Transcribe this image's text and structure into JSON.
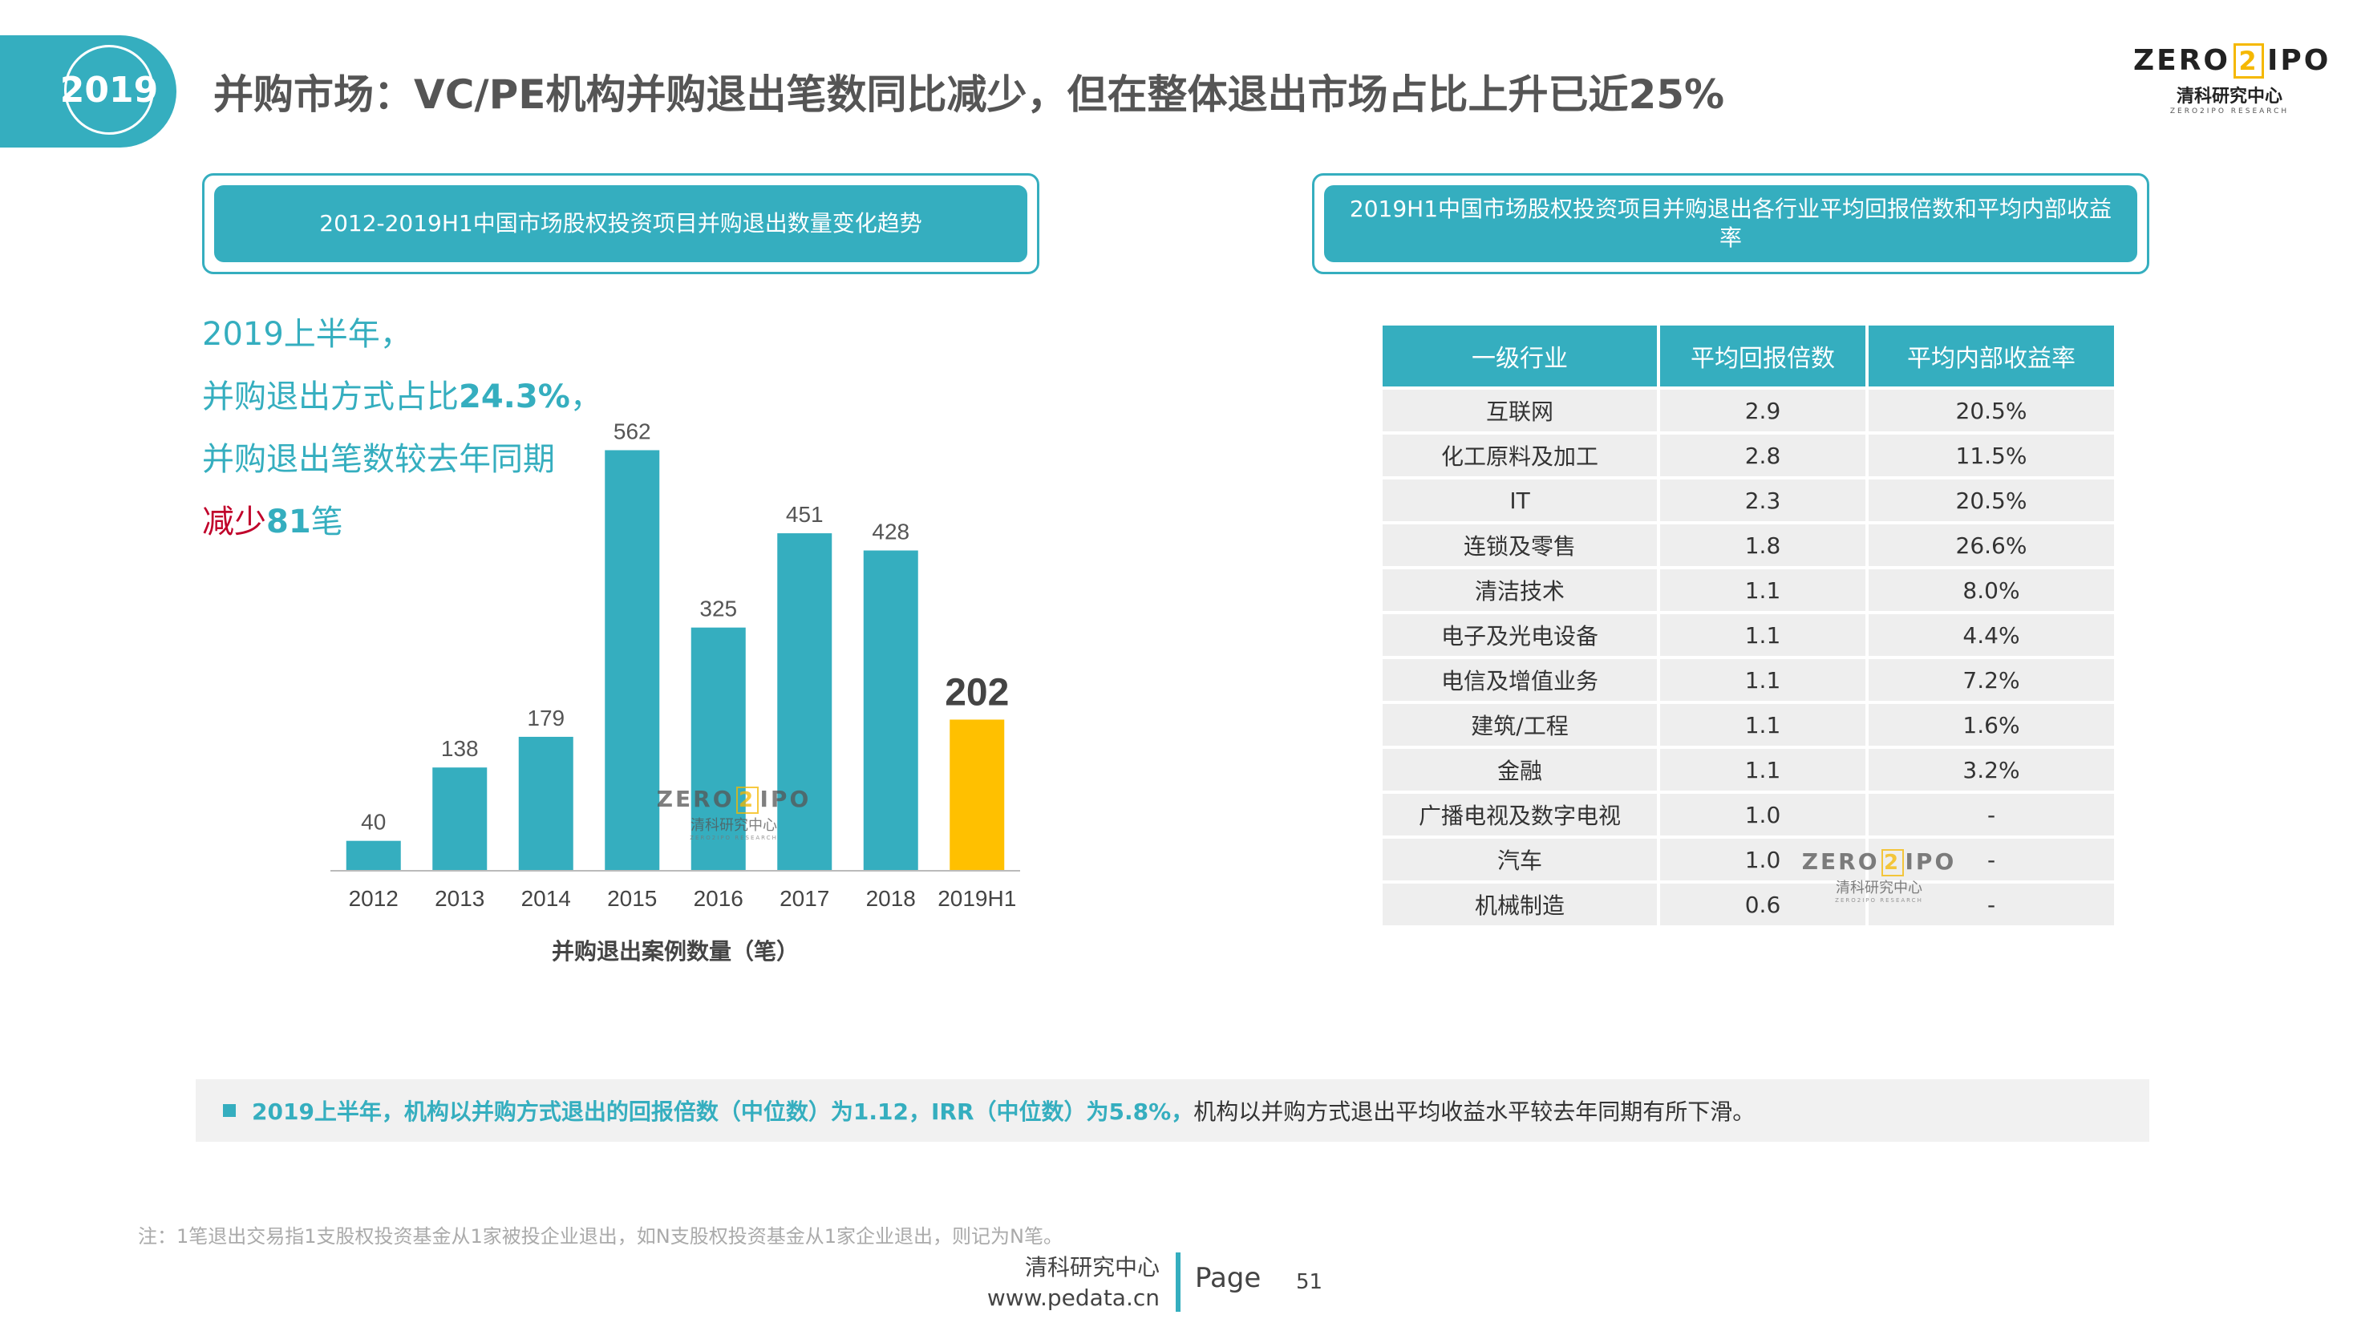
{
  "header": {
    "year_badge": "2019",
    "title": "并购市场：VC/PE机构并购退出笔数同比减少，但在整体退出市场占比上升已近25%"
  },
  "logo": {
    "part1": "ZERO",
    "part2": "2",
    "part3": "IPO",
    "cn": "清科研究中心",
    "en": "ZERO2IPO RESEARCH"
  },
  "left_box_title": "2012-2019H1中国市场股权投资项目并购退出数量变化趋势",
  "right_box_title": "2019H1中国市场股权投资项目并购退出各行业平均回报倍数和平均内部收益率",
  "highlight": {
    "line1": "2019上半年，",
    "line2_prefix": "并购退出方式占比",
    "line2_value": "24.3%",
    "line2_suffix": "，",
    "line3": "并购退出笔数较去年同期",
    "line4_prefix": "减少",
    "line4_value": "81",
    "line4_suffix": "笔"
  },
  "chart_data": {
    "type": "bar",
    "categories": [
      "2012",
      "2013",
      "2014",
      "2015",
      "2016",
      "2017",
      "2018",
      "2019H1"
    ],
    "values": [
      40,
      138,
      179,
      562,
      325,
      451,
      428,
      202
    ],
    "xlabel": "并购退出案例数量（笔）",
    "colors": {
      "default": "#35aebf",
      "highlight": "#ffc000"
    },
    "highlight_index": 7,
    "ylim": [
      0,
      600
    ]
  },
  "table": {
    "headers": [
      "一级行业",
      "平均回报倍数",
      "平均内部收益率"
    ],
    "rows": [
      [
        "互联网",
        "2.9",
        "20.5%"
      ],
      [
        "化工原料及加工",
        "2.8",
        "11.5%"
      ],
      [
        "IT",
        "2.3",
        "20.5%"
      ],
      [
        "连锁及零售",
        "1.8",
        "26.6%"
      ],
      [
        "清洁技术",
        "1.1",
        "8.0%"
      ],
      [
        "电子及光电设备",
        "1.1",
        "4.4%"
      ],
      [
        "电信及增值业务",
        "1.1",
        "7.2%"
      ],
      [
        "建筑/工程",
        "1.1",
        "1.6%"
      ],
      [
        "金融",
        "1.1",
        "3.2%"
      ],
      [
        "广播电视及数字电视",
        "1.0",
        "-"
      ],
      [
        "汽车",
        "1.0",
        "-"
      ],
      [
        "机械制造",
        "0.6",
        "-"
      ]
    ]
  },
  "note": {
    "highlight": "2019上半年，机构以并购方式退出的回报倍数（中位数）为1.12，IRR（中位数）为5.8%，",
    "rest": "机构以并购方式退出平均收益水平较去年同期有所下滑。"
  },
  "footnote": "注：1笔退出交易指1支股权投资基金从1家被投企业退出，如N支股权投资基金从1家企业退出，则记为N笔。",
  "footer": {
    "org": "清科研究中心",
    "url": "www.pedata.cn",
    "page_label": "Page",
    "page_number": "51"
  }
}
